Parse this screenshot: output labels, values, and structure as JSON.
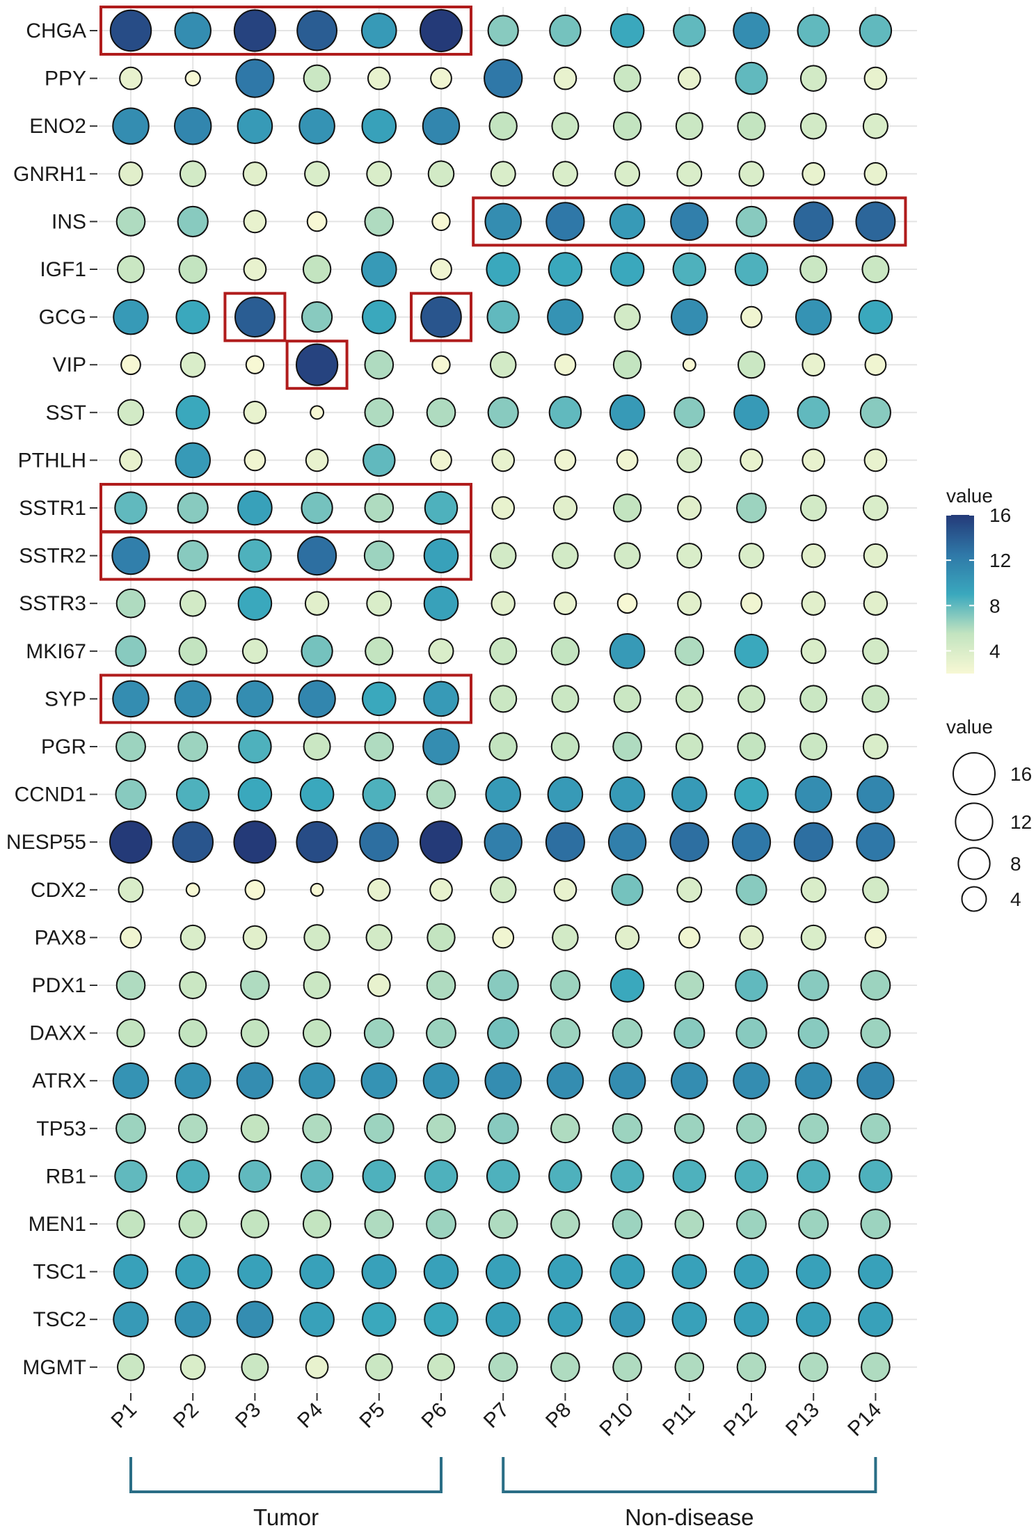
{
  "chart_data": {
    "type": "dotplot",
    "genes": [
      "CHGA",
      "PPY",
      "ENO2",
      "GNRH1",
      "INS",
      "IGF1",
      "GCG",
      "VIP",
      "SST",
      "PTHLH",
      "SSTR1",
      "SSTR2",
      "SSTR3",
      "MKI67",
      "SYP",
      "PGR",
      "CCND1",
      "NESP55",
      "CDX2",
      "PAX8",
      "PDX1",
      "DAXX",
      "ATRX",
      "TP53",
      "RB1",
      "MEN1",
      "TSC1",
      "TSC2",
      "MGMT"
    ],
    "patients": [
      "P1",
      "P2",
      "P3",
      "P4",
      "P5",
      "P6",
      "P7",
      "P8",
      "P10",
      "P11",
      "P12",
      "P13",
      "P14"
    ],
    "values": [
      [
        15,
        11,
        15.5,
        14,
        10,
        16,
        7,
        7.5,
        9,
        8,
        11,
        8,
        8
      ],
      [
        3,
        0.8,
        12.5,
        5,
        3,
        2.5,
        12.5,
        3,
        5,
        3,
        8,
        4.5,
        3
      ],
      [
        11,
        11.5,
        10,
        10.5,
        9.5,
        11.5,
        5.5,
        5,
        5.5,
        5,
        5.5,
        4.5,
        4
      ],
      [
        3.5,
        4.5,
        3.5,
        4,
        4,
        4.5,
        4,
        4,
        4,
        4,
        4,
        3,
        3
      ],
      [
        6,
        7,
        3,
        2,
        6,
        1.5,
        11,
        12.5,
        10,
        12,
        7,
        13.5,
        13.5
      ],
      [
        5,
        5.5,
        3,
        5.5,
        10,
        2.5,
        9,
        9,
        9,
        8.5,
        8.5,
        5,
        5
      ],
      [
        10,
        9,
        14,
        7,
        9,
        14.5,
        8,
        10.5,
        4.5,
        11,
        2.5,
        10.5,
        9
      ],
      [
        2,
        4,
        1.5,
        15.5,
        6,
        1.5,
        4.5,
        2.5,
        5.5,
        0.4,
        5,
        3,
        2.5
      ],
      [
        4.5,
        9,
        3,
        0.5,
        6,
        6,
        7,
        8,
        10,
        7,
        10,
        8,
        7
      ],
      [
        3,
        10,
        2.5,
        3,
        8,
        2.5,
        3,
        2.5,
        2.5,
        4,
        3,
        3,
        3
      ],
      [
        8,
        7,
        9.5,
        7.5,
        6,
        8.5,
        3,
        3.5,
        5.5,
        3.5,
        6.5,
        4.5,
        4
      ],
      [
        12,
        7,
        8.5,
        13,
        6.5,
        9.5,
        4.5,
        4.5,
        4.5,
        4,
        4,
        3.5,
        3.5
      ],
      [
        6,
        4.5,
        9,
        3.5,
        4,
        9.5,
        3.5,
        3,
        2,
        3.5,
        2.5,
        3.5,
        3.5
      ],
      [
        7,
        5.5,
        4,
        7.5,
        5.5,
        4,
        5,
        5.5,
        10,
        6,
        9,
        4,
        4.5
      ],
      [
        11,
        11,
        11,
        11.5,
        9,
        10,
        5,
        5,
        5,
        5,
        5,
        5,
        5
      ],
      [
        6.5,
        6.5,
        8.5,
        5,
        6,
        11,
        5.5,
        5.5,
        6,
        5,
        5.5,
        5,
        4
      ],
      [
        7,
        8.5,
        9,
        9,
        8.5,
        6,
        10,
        10,
        10,
        10,
        9,
        11,
        11.5
      ],
      [
        16,
        14.5,
        16,
        15,
        13,
        16,
        12,
        13,
        12,
        13,
        12.5,
        13,
        12.5
      ],
      [
        4,
        0.5,
        2,
        0.4,
        3,
        3,
        4.5,
        3,
        7.5,
        4,
        7,
        4,
        4.5
      ],
      [
        2.5,
        4,
        3.5,
        4.5,
        4.5,
        5.5,
        2.5,
        4.5,
        3.5,
        2.5,
        3.5,
        4,
        2.5
      ],
      [
        6,
        5,
        6,
        5,
        3,
        6,
        7,
        6.5,
        9,
        6,
        8,
        7,
        6.5
      ],
      [
        5.5,
        5.5,
        5.5,
        5.5,
        6.5,
        6.5,
        7.5,
        6.5,
        6.5,
        7,
        7,
        7,
        6.5
      ],
      [
        10.5,
        10.5,
        11,
        10.5,
        10.5,
        10.5,
        11,
        11,
        11,
        11,
        11,
        11,
        11.5
      ],
      [
        6.5,
        6,
        5.5,
        6,
        6.5,
        6,
        7,
        6,
        6.5,
        6.5,
        6.5,
        6.5,
        6.5
      ],
      [
        8,
        8.5,
        8,
        8,
        8.5,
        8.5,
        8.5,
        8.5,
        8.5,
        8.5,
        8.5,
        8.5,
        8.5
      ],
      [
        5.5,
        5.5,
        5.5,
        5.5,
        6,
        6.5,
        6,
        6,
        6.5,
        6,
        6.5,
        6.5,
        6.5
      ],
      [
        9.5,
        9.5,
        9.5,
        9.5,
        9.5,
        9.5,
        9.5,
        9.5,
        9.5,
        9.5,
        9.5,
        9.5,
        9.5
      ],
      [
        10,
        10.5,
        11,
        9.5,
        9,
        9,
        9.5,
        9.5,
        10,
        9.5,
        9.5,
        9.5,
        9.5
      ],
      [
        5,
        4,
        5,
        3,
        5,
        5,
        6,
        6,
        6,
        6,
        6,
        6,
        6
      ]
    ],
    "highlights": [
      {
        "genes": [
          "CHGA"
        ],
        "patients": [
          "P1",
          "P6"
        ]
      },
      {
        "genes": [
          "INS"
        ],
        "patients": [
          "P7",
          "P14"
        ]
      },
      {
        "genes": [
          "GCG"
        ],
        "patients": [
          "P3",
          "P3"
        ]
      },
      {
        "genes": [
          "GCG"
        ],
        "patients": [
          "P6",
          "P6"
        ]
      },
      {
        "genes": [
          "VIP"
        ],
        "patients": [
          "P4",
          "P4"
        ]
      },
      {
        "genes": [
          "SSTR1"
        ],
        "patients": [
          "P1",
          "P6"
        ]
      },
      {
        "genes": [
          "SSTR2"
        ],
        "patients": [
          "P1",
          "P6"
        ]
      },
      {
        "genes": [
          "SYP"
        ],
        "patients": [
          "P1",
          "P6"
        ]
      }
    ],
    "groups": [
      {
        "label": "Tumor",
        "from": "P1",
        "to": "P6"
      },
      {
        "label": "Non-disease",
        "from": "P7",
        "to": "P14"
      }
    ],
    "value_range": [
      0,
      16
    ],
    "color_legend": {
      "title": "value",
      "ticks": [
        4,
        8,
        12,
        16
      ],
      "low_color": "#f7f8d4",
      "mid_color": "#3aa8bd",
      "high_color": "#243a78"
    },
    "size_legend": {
      "title": "value",
      "values": [
        16,
        12,
        8,
        4
      ]
    },
    "grid": true,
    "highlight_color": "#b01c1c",
    "bracket_color": "#2a6e86"
  }
}
